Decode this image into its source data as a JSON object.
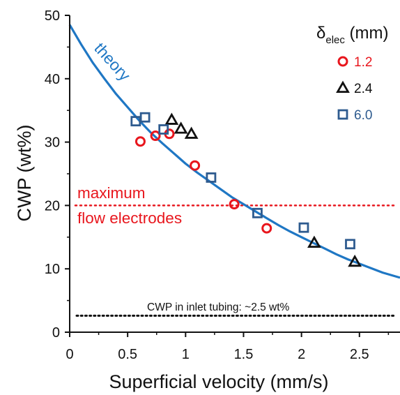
{
  "chart_data": {
    "type": "scatter",
    "xlabel": "Superficial  velocity (mm/s)",
    "ylabel": "CWP (wt%)",
    "xlim": [
      0,
      2.85
    ],
    "ylim": [
      0,
      50
    ],
    "xticks": [
      0,
      0.5,
      1,
      1.5,
      2,
      2.5
    ],
    "xtick_labels": [
      "0",
      "0.5",
      "1",
      "1.5",
      "2",
      "2.5"
    ],
    "yticks": [
      0,
      10,
      20,
      30,
      40,
      50
    ],
    "ytick_labels": [
      "0",
      "10",
      "20",
      "30",
      "40",
      "50"
    ],
    "legend": {
      "title_symbol": "δ",
      "title_sub": "elec",
      "title_unit": " (mm)",
      "placement": "top-right"
    },
    "series": [
      {
        "name": "1.2",
        "marker": "circle",
        "color": "#e8161d",
        "points": [
          [
            0.61,
            30.1
          ],
          [
            0.74,
            31.0
          ],
          [
            0.86,
            31.3
          ],
          [
            1.08,
            26.3
          ],
          [
            1.42,
            20.2
          ],
          [
            1.7,
            16.4
          ]
        ]
      },
      {
        "name": "2.4",
        "marker": "triangle",
        "color": "#111111",
        "points": [
          [
            0.88,
            33.5
          ],
          [
            0.96,
            32.1
          ],
          [
            1.05,
            31.3
          ],
          [
            2.11,
            14.1
          ],
          [
            2.46,
            11.1
          ]
        ]
      },
      {
        "name": "6.0",
        "marker": "square",
        "color": "#2e5b8f",
        "points": [
          [
            0.57,
            33.3
          ],
          [
            0.65,
            33.9
          ],
          [
            0.81,
            32.0
          ],
          [
            1.22,
            24.4
          ],
          [
            1.62,
            18.8
          ],
          [
            2.02,
            16.5
          ],
          [
            2.42,
            13.9
          ]
        ]
      }
    ],
    "theory_curve": {
      "label": "theory",
      "color": "#1f77c4",
      "x": [
        0,
        0.1,
        0.2,
        0.3,
        0.4,
        0.5,
        0.6,
        0.7,
        0.8,
        0.9,
        1.0,
        1.1,
        1.2,
        1.3,
        1.4,
        1.5,
        1.6,
        1.7,
        1.8,
        1.9,
        2.0,
        2.1,
        2.2,
        2.3,
        2.4,
        2.5,
        2.6,
        2.7,
        2.85
      ],
      "y": [
        48.5,
        45.4,
        42.5,
        40.0,
        37.6,
        35.5,
        33.4,
        31.5,
        29.8,
        28.2,
        26.6,
        25.2,
        23.9,
        22.6,
        21.3,
        20.2,
        19.1,
        18.0,
        16.9,
        15.9,
        15.0,
        14.1,
        13.2,
        12.3,
        11.5,
        10.8,
        10.1,
        9.4,
        8.6
      ]
    },
    "reference_lines": [
      {
        "y": 20,
        "color": "#e8161d",
        "style": "dotted",
        "label_lines": [
          "maximum",
          "flow electrodes"
        ]
      },
      {
        "y": 2.6,
        "color": "#111111",
        "style": "dotted",
        "label": "CWP in inlet tubing: ~2.5 wt%"
      }
    ]
  }
}
